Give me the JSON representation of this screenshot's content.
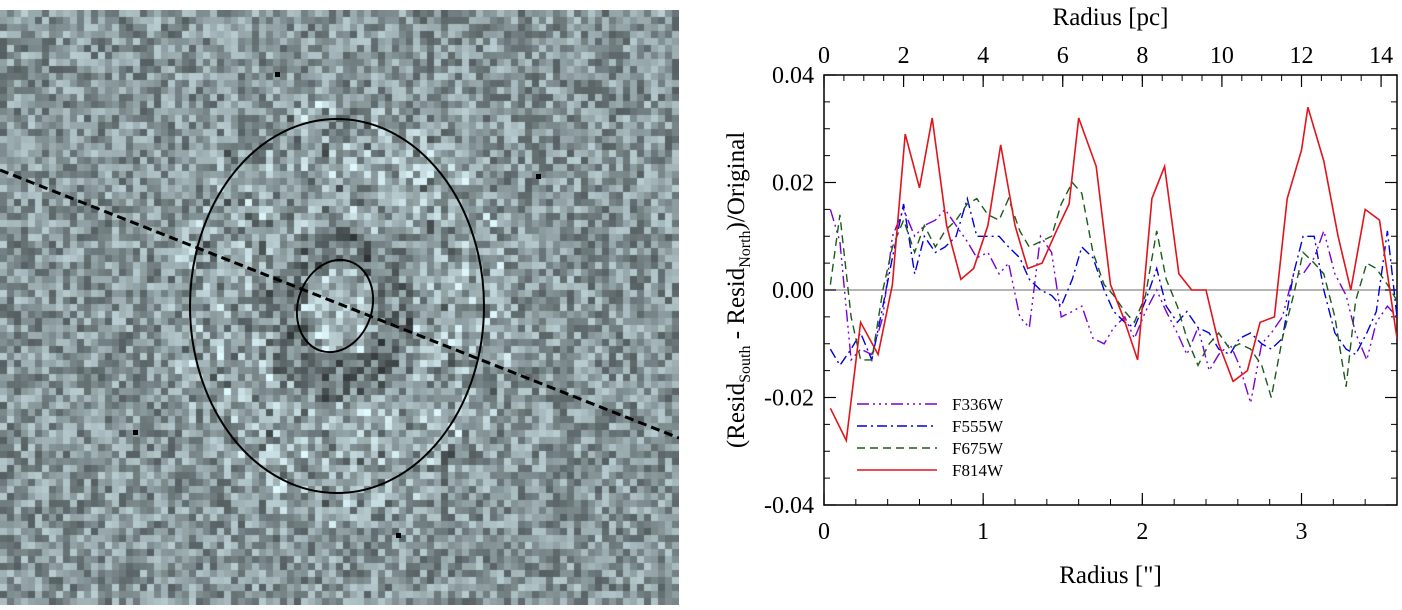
{
  "image_panel": {
    "description_colors": {
      "background_mid": "#8fa3a5",
      "dark": "#1f2b2c",
      "light": "#f4f7f7"
    },
    "overlay_color": "#000000"
  },
  "chart_data": {
    "type": "line",
    "xlabel": "Radius [\"]",
    "x2label": "Radius [pc]",
    "ylabel_parts": [
      "(Resid",
      "South",
      " - Resid",
      "North",
      ")/Original"
    ],
    "xlim": [
      0,
      3.6
    ],
    "x2lim": [
      0,
      14.4
    ],
    "ylim": [
      -0.04,
      0.04
    ],
    "xticks": [
      0,
      1,
      2,
      3
    ],
    "x2ticks": [
      0,
      2,
      4,
      6,
      8,
      10,
      12,
      14
    ],
    "yticks": [
      -0.04,
      -0.02,
      0.0,
      0.02,
      0.04
    ],
    "ytick_labels": [
      "-0.04",
      "-0.02",
      "0.00",
      "0.02",
      "0.04"
    ],
    "xtick_labels": [
      "0",
      "1",
      "2",
      "3"
    ],
    "x2tick_labels": [
      "0",
      "2",
      "4",
      "6",
      "8",
      "10",
      "12",
      "14"
    ],
    "zero_line": true,
    "legend_position": "bottom-left",
    "series": [
      {
        "name": "F336W",
        "color": "#7a00d6",
        "dash": "dashdotdotdot",
        "x": [
          0.04,
          0.1,
          0.17,
          0.23,
          0.3,
          0.37,
          0.43,
          0.5,
          0.57,
          0.63,
          0.7,
          0.76,
          0.83,
          0.9,
          0.96,
          1.03,
          1.1,
          1.16,
          1.23,
          1.29,
          1.36,
          1.43,
          1.49,
          1.56,
          1.62,
          1.69,
          1.76,
          1.82,
          1.89,
          1.95,
          2.02,
          2.09,
          2.15,
          2.22,
          2.28,
          2.35,
          2.42,
          2.48,
          2.55,
          2.61,
          2.68,
          2.75,
          2.81,
          2.88,
          2.95,
          3.01,
          3.08,
          3.14,
          3.21,
          3.28,
          3.34,
          3.41,
          3.47,
          3.54,
          3.6
        ],
        "y": [
          0.015,
          0.009,
          -0.013,
          -0.011,
          -0.012,
          -0.005,
          0.01,
          0.015,
          0.01,
          0.012,
          0.013,
          0.015,
          0.012,
          0.009,
          0.006,
          0.007,
          0.003,
          0.005,
          -0.005,
          -0.007,
          0.01,
          0.007,
          -0.005,
          -0.004,
          -0.003,
          -0.009,
          -0.01,
          -0.007,
          -0.005,
          -0.009,
          -0.004,
          0.0,
          -0.004,
          -0.008,
          -0.012,
          -0.007,
          -0.015,
          -0.012,
          -0.01,
          -0.014,
          -0.021,
          -0.01,
          -0.008,
          -0.005,
          0.003,
          0.003,
          0.006,
          0.011,
          0.003,
          -0.001,
          -0.008,
          -0.013,
          -0.006,
          -0.003,
          -0.005
        ]
      },
      {
        "name": "F555W",
        "color": "#0000dd",
        "dash": "dashdot",
        "x": [
          0.04,
          0.1,
          0.17,
          0.23,
          0.3,
          0.37,
          0.43,
          0.5,
          0.57,
          0.63,
          0.7,
          0.76,
          0.83,
          0.9,
          0.96,
          1.03,
          1.1,
          1.16,
          1.23,
          1.29,
          1.36,
          1.43,
          1.49,
          1.56,
          1.62,
          1.69,
          1.76,
          1.82,
          1.89,
          1.95,
          2.02,
          2.09,
          2.15,
          2.22,
          2.28,
          2.35,
          2.42,
          2.48,
          2.55,
          2.61,
          2.68,
          2.75,
          2.81,
          2.88,
          2.95,
          3.01,
          3.08,
          3.14,
          3.21,
          3.28,
          3.34,
          3.41,
          3.47,
          3.54,
          3.6
        ],
        "y": [
          -0.011,
          -0.014,
          -0.011,
          -0.008,
          -0.013,
          -0.003,
          0.006,
          0.016,
          0.003,
          0.01,
          0.007,
          0.008,
          0.01,
          0.017,
          0.01,
          0.01,
          0.01,
          0.008,
          0.006,
          0.002,
          0.0,
          -0.001,
          -0.003,
          0.002,
          0.008,
          0.006,
          0.0,
          -0.004,
          -0.006,
          -0.007,
          -0.002,
          0.004,
          -0.003,
          -0.006,
          -0.004,
          -0.007,
          -0.008,
          -0.011,
          -0.012,
          -0.009,
          -0.008,
          -0.01,
          -0.011,
          -0.009,
          0.003,
          0.01,
          0.01,
          0.0,
          -0.008,
          -0.011,
          -0.012,
          -0.008,
          -0.004,
          0.011,
          -0.005
        ]
      },
      {
        "name": "F675W",
        "color": "#1a5c1a",
        "dash": "dashed",
        "x": [
          0.04,
          0.1,
          0.17,
          0.23,
          0.3,
          0.37,
          0.43,
          0.5,
          0.57,
          0.63,
          0.7,
          0.76,
          0.83,
          0.9,
          0.96,
          1.03,
          1.1,
          1.16,
          1.23,
          1.29,
          1.36,
          1.43,
          1.49,
          1.56,
          1.62,
          1.69,
          1.76,
          1.82,
          1.89,
          1.95,
          2.02,
          2.09,
          2.15,
          2.22,
          2.28,
          2.35,
          2.42,
          2.48,
          2.55,
          2.61,
          2.68,
          2.75,
          2.81,
          2.88,
          2.95,
          3.01,
          3.08,
          3.14,
          3.21,
          3.28,
          3.34,
          3.41,
          3.47,
          3.54,
          3.6
        ],
        "y": [
          0.001,
          0.014,
          -0.005,
          -0.013,
          -0.013,
          0.0,
          0.008,
          0.013,
          0.007,
          0.012,
          0.008,
          0.011,
          0.013,
          0.016,
          0.017,
          0.014,
          0.013,
          0.017,
          0.011,
          0.008,
          0.009,
          0.01,
          0.016,
          0.02,
          0.018,
          0.007,
          0.001,
          -0.001,
          -0.004,
          -0.006,
          -0.001,
          0.011,
          0.002,
          -0.003,
          -0.009,
          -0.014,
          -0.01,
          -0.008,
          -0.011,
          -0.01,
          -0.011,
          -0.014,
          -0.02,
          -0.009,
          -0.001,
          0.007,
          0.005,
          0.003,
          -0.005,
          -0.018,
          -0.002,
          0.005,
          0.004,
          0.001,
          -0.002
        ]
      },
      {
        "name": "F814W",
        "color": "#e0141a",
        "dash": "solid",
        "x": [
          0.04,
          0.14,
          0.23,
          0.34,
          0.43,
          0.51,
          0.6,
          0.68,
          0.77,
          0.86,
          0.94,
          1.03,
          1.11,
          1.2,
          1.28,
          1.37,
          1.46,
          1.54,
          1.6,
          1.71,
          1.8,
          1.88,
          1.97,
          2.06,
          2.14,
          2.23,
          2.31,
          2.4,
          2.48,
          2.57,
          2.66,
          2.74,
          2.83,
          2.91,
          3.0,
          3.04,
          3.14,
          3.23,
          3.31,
          3.4,
          3.49,
          3.57,
          3.6
        ],
        "y": [
          -0.022,
          -0.028,
          -0.006,
          -0.012,
          0.001,
          0.029,
          0.019,
          0.032,
          0.012,
          0.002,
          0.004,
          0.012,
          0.027,
          0.012,
          0.004,
          0.005,
          0.011,
          0.016,
          0.032,
          0.023,
          0.001,
          -0.005,
          -0.013,
          0.017,
          0.023,
          0.003,
          0.0,
          0.0,
          -0.01,
          -0.017,
          -0.015,
          -0.006,
          -0.005,
          0.017,
          0.026,
          0.034,
          0.024,
          0.01,
          0.0,
          0.015,
          0.013,
          -0.003,
          -0.009
        ]
      }
    ]
  }
}
